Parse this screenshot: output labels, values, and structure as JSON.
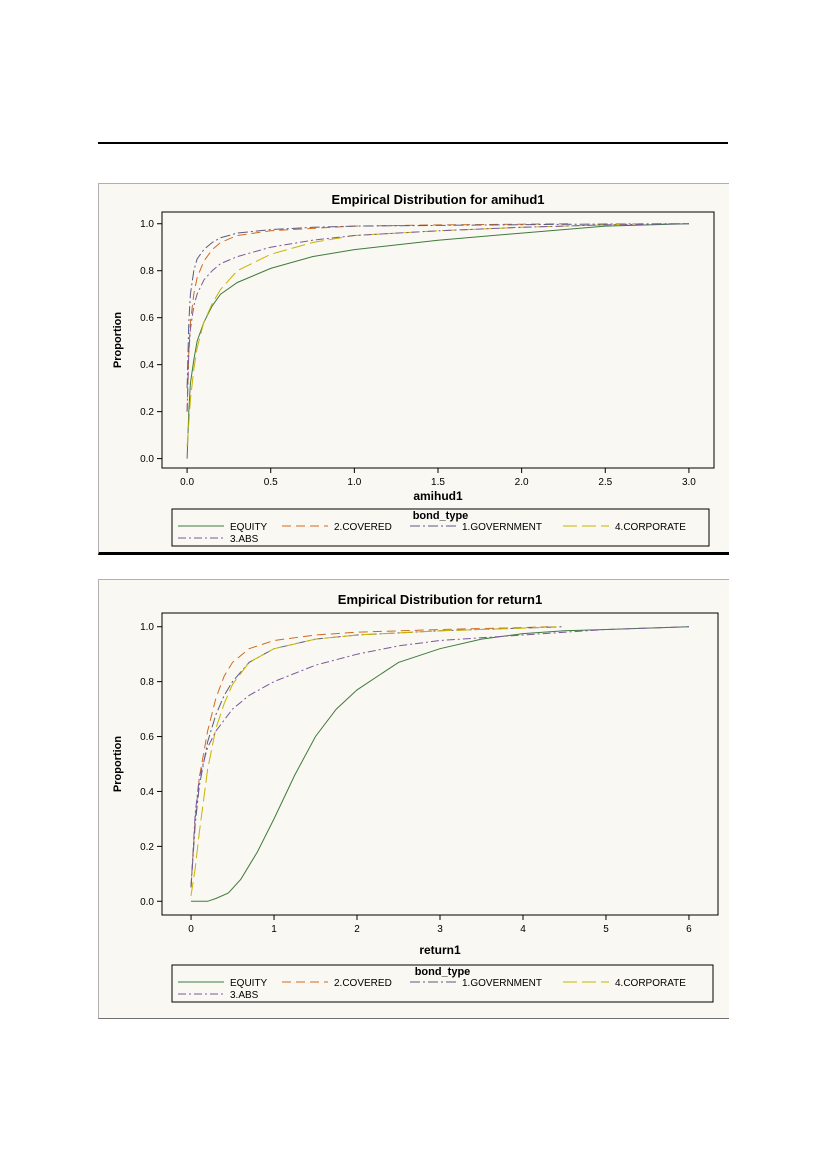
{
  "chart_data": [
    {
      "type": "line",
      "title": "Empirical Distribution for amihud1",
      "xlabel": "amihud1",
      "ylabel": "Proportion",
      "xlim": [
        -0.15,
        3.15
      ],
      "ylim": [
        -0.04,
        1.05
      ],
      "xticks": [
        "0.0",
        "0.5",
        "1.0",
        "1.5",
        "2.0",
        "2.5",
        "3.0"
      ],
      "xtick_values": [
        0,
        0.5,
        1,
        1.5,
        2,
        2.5,
        3
      ],
      "yticks": [
        "0.0",
        "0.2",
        "0.4",
        "0.6",
        "0.8",
        "1.0"
      ],
      "ytick_values": [
        0,
        0.2,
        0.4,
        0.6,
        0.8,
        1.0
      ],
      "legend_title": "bond_type",
      "legend_position": "bottom",
      "series": [
        {
          "name": "EQUITY",
          "color": "#3f7a3f",
          "dash": "",
          "x": [
            0,
            0.01,
            0.02,
            0.04,
            0.06,
            0.1,
            0.15,
            0.2,
            0.3,
            0.5,
            0.75,
            1.0,
            1.5,
            2.0,
            2.5,
            3.0
          ],
          "y": [
            0.0,
            0.2,
            0.32,
            0.42,
            0.5,
            0.58,
            0.65,
            0.7,
            0.75,
            0.81,
            0.86,
            0.89,
            0.93,
            0.96,
            0.99,
            1.0
          ]
        },
        {
          "name": "2.COVERED",
          "color": "#d2691e",
          "dash": "9,5",
          "x": [
            0,
            0.01,
            0.02,
            0.04,
            0.06,
            0.1,
            0.15,
            0.2,
            0.3,
            0.5,
            0.75,
            1.0,
            1.5,
            2.0,
            2.3
          ],
          "y": [
            0.2,
            0.45,
            0.58,
            0.7,
            0.77,
            0.84,
            0.89,
            0.92,
            0.95,
            0.97,
            0.98,
            0.99,
            0.995,
            0.998,
            1.0
          ]
        },
        {
          "name": "1.GOVERNMENT",
          "color": "#5a5a82",
          "dash": "10,3,2,3",
          "x": [
            0,
            0.01,
            0.02,
            0.04,
            0.06,
            0.1,
            0.15,
            0.2,
            0.3,
            0.5,
            0.75,
            1.0,
            1.5,
            2.0,
            2.5,
            3.0
          ],
          "y": [
            0.3,
            0.58,
            0.7,
            0.8,
            0.85,
            0.89,
            0.92,
            0.94,
            0.96,
            0.975,
            0.985,
            0.99,
            0.993,
            0.996,
            0.999,
            1.0
          ]
        },
        {
          "name": "4.CORPORATE",
          "color": "#c8b400",
          "dash": "14,5",
          "x": [
            0,
            0.01,
            0.02,
            0.04,
            0.06,
            0.1,
            0.15,
            0.2,
            0.3,
            0.5,
            0.75,
            1.0,
            1.5,
            2.0,
            2.5,
            2.7
          ],
          "y": [
            0.05,
            0.15,
            0.25,
            0.38,
            0.47,
            0.58,
            0.66,
            0.72,
            0.8,
            0.87,
            0.92,
            0.95,
            0.97,
            0.985,
            0.995,
            1.0
          ]
        },
        {
          "name": "3.ABS",
          "color": "#7a5a9a",
          "dash": "8,3,2,3",
          "x": [
            0,
            0.01,
            0.02,
            0.04,
            0.06,
            0.1,
            0.15,
            0.2,
            0.3,
            0.5,
            0.75,
            1.0,
            1.5,
            2.0,
            2.5,
            3.0
          ],
          "y": [
            0.2,
            0.45,
            0.55,
            0.65,
            0.7,
            0.76,
            0.8,
            0.83,
            0.86,
            0.9,
            0.93,
            0.95,
            0.97,
            0.985,
            0.995,
            1.0
          ]
        }
      ]
    },
    {
      "type": "line",
      "title": "Empirical Distribution for return1",
      "xlabel": "return1",
      "ylabel": "Proportion",
      "xlim": [
        -0.35,
        6.35
      ],
      "ylim": [
        -0.05,
        1.05
      ],
      "xticks": [
        "0",
        "1",
        "2",
        "3",
        "4",
        "5",
        "6"
      ],
      "xtick_values": [
        0,
        1,
        2,
        3,
        4,
        5,
        6
      ],
      "yticks": [
        "0.0",
        "0.2",
        "0.4",
        "0.6",
        "0.8",
        "1.0"
      ],
      "ytick_values": [
        0,
        0.2,
        0.4,
        0.6,
        0.8,
        1.0
      ],
      "legend_title": "bond_type",
      "legend_position": "bottom",
      "series": [
        {
          "name": "EQUITY",
          "color": "#3f7a3f",
          "dash": "",
          "x": [
            0,
            0.2,
            0.3,
            0.45,
            0.6,
            0.8,
            1.0,
            1.25,
            1.5,
            1.75,
            2.0,
            2.5,
            3.0,
            3.5,
            4.0,
            4.5,
            5.0,
            5.5,
            6.0
          ],
          "y": [
            0.0,
            0.0,
            0.01,
            0.03,
            0.08,
            0.18,
            0.3,
            0.46,
            0.6,
            0.7,
            0.77,
            0.87,
            0.92,
            0.955,
            0.975,
            0.985,
            0.99,
            0.995,
            1.0
          ]
        },
        {
          "name": "2.COVERED",
          "color": "#d2691e",
          "dash": "9,5",
          "x": [
            0,
            0.05,
            0.1,
            0.2,
            0.3,
            0.4,
            0.5,
            0.7,
            1.0,
            1.5,
            2.0,
            3.0,
            4.0,
            4.3
          ],
          "y": [
            0.05,
            0.3,
            0.45,
            0.62,
            0.74,
            0.82,
            0.87,
            0.92,
            0.95,
            0.97,
            0.98,
            0.99,
            0.997,
            1.0
          ]
        },
        {
          "name": "1.GOVERNMENT",
          "color": "#5a5a82",
          "dash": "10,3,2,3",
          "x": [
            0,
            0.05,
            0.1,
            0.2,
            0.3,
            0.4,
            0.5,
            0.7,
            1.0,
            1.5,
            2.0,
            3.0,
            4.0,
            4.5
          ],
          "y": [
            0.05,
            0.28,
            0.42,
            0.58,
            0.68,
            0.75,
            0.8,
            0.87,
            0.92,
            0.955,
            0.97,
            0.985,
            0.995,
            1.0
          ]
        },
        {
          "name": "4.CORPORATE",
          "color": "#c8b400",
          "dash": "14,5",
          "x": [
            0,
            0.05,
            0.1,
            0.2,
            0.3,
            0.4,
            0.5,
            0.7,
            1.0,
            1.5,
            2.0,
            3.0,
            4.0,
            4.4
          ],
          "y": [
            0.02,
            0.12,
            0.25,
            0.48,
            0.63,
            0.72,
            0.79,
            0.87,
            0.92,
            0.955,
            0.97,
            0.985,
            0.995,
            1.0
          ]
        },
        {
          "name": "3.ABS",
          "color": "#7a5a9a",
          "dash": "8,3,2,3",
          "x": [
            0,
            0.05,
            0.1,
            0.2,
            0.3,
            0.5,
            0.7,
            1.0,
            1.5,
            2.0,
            2.5,
            3.0,
            4.0,
            5.0,
            6.0
          ],
          "y": [
            0.05,
            0.32,
            0.45,
            0.56,
            0.62,
            0.7,
            0.75,
            0.8,
            0.86,
            0.9,
            0.93,
            0.95,
            0.97,
            0.99,
            1.0
          ]
        }
      ]
    }
  ]
}
